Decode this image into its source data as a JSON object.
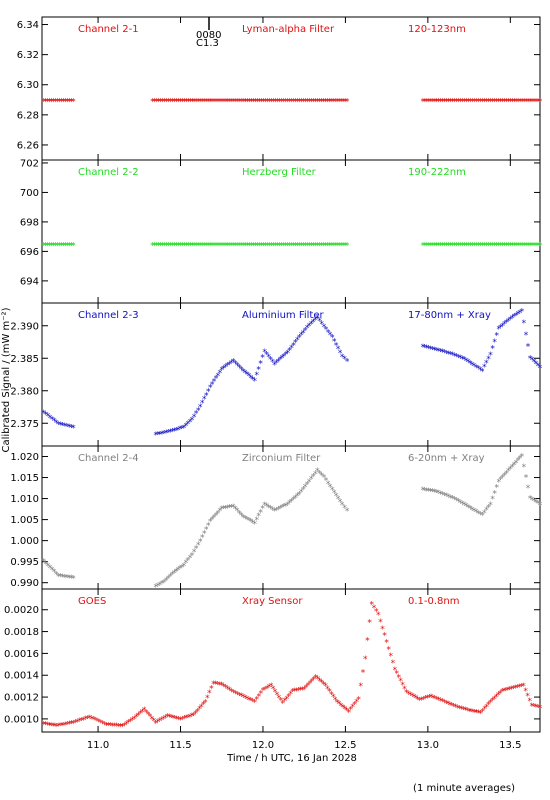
{
  "footer_note": "(1 minute averages)",
  "ylabel": "Calibrated Signal / (mW m⁻²)",
  "xlabel": "Time / h UTC, 16 Jan 2028",
  "event_marker": {
    "top": "0080",
    "bottom": "C1.3"
  },
  "x_ticks": [
    "11.0",
    "11.5",
    "12.0",
    "12.5",
    "13.0",
    "13.5"
  ],
  "colors": {
    "red": "#e01010",
    "green": "#22dd22",
    "blue": "#1010c0",
    "gray": "#808080"
  },
  "chart_data": [
    {
      "type": "scatter",
      "title": "",
      "xlabel": "",
      "ylabel": "",
      "labels": [
        "Channel 2-1",
        "Lyman-alpha Filter",
        "120-123nm"
      ],
      "color": "#e01010",
      "xlim": [
        10.66,
        13.68
      ],
      "ylim": [
        6.25,
        6.345
      ],
      "yticks": [
        "6.34",
        "6.32",
        "6.30",
        "6.28",
        "6.26"
      ],
      "ytick_values": [
        6.34,
        6.32,
        6.3,
        6.28,
        6.26
      ],
      "series": [
        {
          "x": [
            [
              10.67,
              10.85
            ],
            [
              11.33,
              12.51
            ],
            [
              12.97,
              13.68
            ]
          ],
          "y": [
            [
              6.289,
              6.289
            ],
            [
              6.289,
              6.289
            ],
            [
              6.289,
              6.289
            ]
          ]
        }
      ]
    },
    {
      "type": "scatter",
      "title": "",
      "xlabel": "",
      "ylabel": "",
      "labels": [
        "Channel 2-2",
        "Herzberg Filter",
        "190-222nm"
      ],
      "color": "#22dd22",
      "xlim": [
        10.66,
        13.68
      ],
      "ylim": [
        692.5,
        702.2
      ],
      "yticks": [
        "702",
        "700",
        "698",
        "696",
        "694"
      ],
      "ytick_values": [
        702,
        700,
        698,
        696,
        694
      ],
      "series": [
        {
          "x": [
            [
              10.67,
              10.85
            ],
            [
              11.33,
              12.51
            ],
            [
              12.97,
              13.68
            ]
          ],
          "y": [
            [
              696.4,
              696.4
            ],
            [
              696.4,
              696.4
            ],
            [
              696.4,
              696.4
            ]
          ]
        }
      ]
    },
    {
      "type": "scatter",
      "title": "",
      "xlabel": "",
      "ylabel": "",
      "labels": [
        "Channel 2-3",
        "Aluminium Filter",
        "17-80nm + Xray"
      ],
      "color": "#1010c0",
      "xlim": [
        10.66,
        13.68
      ],
      "ylim": [
        2.3715,
        2.3935
      ],
      "yticks": [
        "2.390",
        "2.385",
        "2.380",
        "2.375"
      ],
      "ytick_values": [
        2.39,
        2.385,
        2.38,
        2.375
      ],
      "series": [
        {
          "x": [
            [
              10.67,
              10.76,
              10.85
            ],
            [
              11.35,
              11.4,
              11.45,
              11.52,
              11.57,
              11.62,
              11.68,
              11.75,
              11.82,
              11.88,
              11.95,
              12.01,
              12.07,
              12.15,
              12.22,
              12.28,
              12.33,
              12.37,
              12.42,
              12.48,
              12.51
            ],
            [
              12.97,
              13.05,
              13.15,
              13.22,
              13.28,
              13.33,
              13.38,
              13.43,
              13.5,
              13.57,
              13.62,
              13.68
            ]
          ],
          "y": [
            [
              2.3766,
              2.3748,
              2.3743
            ],
            [
              2.3732,
              2.3734,
              2.3737,
              2.3743,
              2.3755,
              2.3775,
              2.3805,
              2.3832,
              2.3845,
              2.383,
              2.3815,
              2.386,
              2.384,
              2.3858,
              2.3882,
              2.39,
              2.3912,
              2.3898,
              2.3882,
              2.3852,
              2.3845
            ],
            [
              2.3867,
              2.3862,
              2.3855,
              2.3848,
              2.3838,
              2.383,
              2.3855,
              2.3895,
              2.391,
              2.3922,
              2.385,
              2.3835
            ]
          ]
        }
      ]
    },
    {
      "type": "scatter",
      "title": "",
      "xlabel": "",
      "ylabel": "",
      "labels": [
        "Channel 2-4",
        "Zirconium Filter",
        "6-20nm + Xray"
      ],
      "color": "#808080",
      "xlim": [
        10.66,
        13.68
      ],
      "ylim": [
        0.9885,
        1.0225
      ],
      "yticks": [
        "1.020",
        "1.015",
        "1.010",
        "1.005",
        "1.000",
        "0.995",
        "0.990"
      ],
      "ytick_values": [
        1.02,
        1.015,
        1.01,
        1.005,
        1.0,
        0.995,
        0.99
      ],
      "series": [
        {
          "x": [
            [
              10.67,
              10.76,
              10.85
            ],
            [
              11.35,
              11.4,
              11.45,
              11.52,
              11.57,
              11.62,
              11.68,
              11.75,
              11.82,
              11.88,
              11.95,
              12.01,
              12.07,
              12.15,
              12.22,
              12.28,
              12.33,
              12.37,
              12.42,
              12.48,
              12.51
            ],
            [
              12.97,
              13.05,
              13.15,
              13.22,
              13.28,
              13.33,
              13.38,
              13.43,
              13.5,
              13.57,
              13.62,
              13.68
            ]
          ],
          "y": [
            [
              0.995,
              0.9915,
              0.991
            ],
            [
              0.989,
              0.99,
              0.992,
              0.994,
              0.9965,
              0.9998,
              1.0045,
              1.0075,
              1.008,
              1.0055,
              1.004,
              1.0085,
              1.007,
              1.0085,
              1.011,
              1.014,
              1.0165,
              1.015,
              1.012,
              1.0085,
              1.007
            ],
            [
              1.012,
              1.0115,
              1.01,
              1.0085,
              1.007,
              1.006,
              1.0085,
              1.014,
              1.017,
              1.02,
              1.01,
              1.0085
            ]
          ]
        }
      ]
    },
    {
      "type": "scatter",
      "title": "",
      "xlabel": "",
      "ylabel": "",
      "labels": [
        "GOES",
        "Xray Sensor",
        "0.1-0.8nm"
      ],
      "color": "#e01010",
      "xlim": [
        10.66,
        13.68
      ],
      "ylim": [
        0.00088,
        0.00219
      ],
      "yticks": [
        "0.0020",
        "0.0018",
        "0.0016",
        "0.0014",
        "0.0012",
        "0.0010"
      ],
      "ytick_values": [
        0.002,
        0.0018,
        0.0016,
        0.0014,
        0.0012,
        0.001
      ],
      "series": [
        {
          "x": [
            [
              10.67,
              10.75,
              10.85,
              10.95,
              11.05,
              11.15,
              11.22,
              11.28,
              11.35,
              11.42,
              11.5,
              11.58,
              11.65,
              11.7,
              11.75,
              11.82,
              11.88,
              11.95,
              12.0,
              12.05,
              12.12,
              12.18,
              12.25,
              12.32,
              12.38,
              12.45,
              12.52,
              12.58,
              12.62,
              12.66,
              12.7,
              12.75,
              12.8,
              12.87,
              12.95,
              13.02,
              13.1,
              13.18,
              13.25,
              13.32,
              13.38,
              13.45,
              13.52,
              13.58,
              13.63,
              13.68
            ]
          ],
          "y": [
            [
              0.00095,
              0.00093,
              0.00096,
              0.00101,
              0.00094,
              0.00093,
              0.001,
              0.00108,
              0.00096,
              0.00102,
              0.00099,
              0.00103,
              0.00115,
              0.00132,
              0.00131,
              0.00124,
              0.0012,
              0.00115,
              0.00126,
              0.0013,
              0.00114,
              0.00125,
              0.00127,
              0.00138,
              0.0013,
              0.00115,
              0.00106,
              0.00118,
              0.00155,
              0.00205,
              0.00195,
              0.0017,
              0.00145,
              0.00124,
              0.00117,
              0.0012,
              0.00115,
              0.0011,
              0.00107,
              0.00105,
              0.00115,
              0.00125,
              0.00128,
              0.0013,
              0.00112,
              0.0011
            ]
          ]
        }
      ]
    }
  ]
}
